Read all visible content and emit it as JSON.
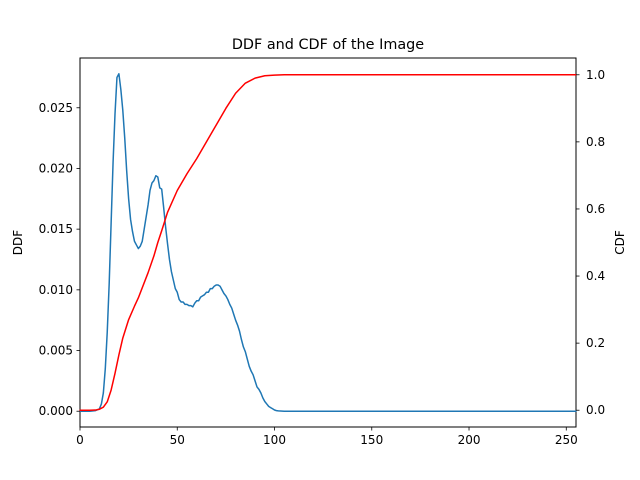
{
  "chart_data": {
    "type": "line",
    "title": "DDF and CDF of the Image",
    "xlabel": "",
    "ylabel": "DDF",
    "ylabel_right": "CDF",
    "xlim": [
      0,
      255
    ],
    "ylim": [
      -0.0013,
      0.0291
    ],
    "ylim_right": [
      -0.05,
      1.05
    ],
    "xticks": [
      0,
      50,
      100,
      150,
      200,
      250
    ],
    "yticks": [
      0.0,
      0.005,
      0.01,
      0.015,
      0.02,
      0.025
    ],
    "yticks_right": [
      0.0,
      0.2,
      0.4,
      0.6,
      0.8,
      1.0
    ],
    "xtick_labels": [
      "0",
      "50",
      "100",
      "150",
      "200",
      "250"
    ],
    "ytick_labels": [
      "0.000",
      "0.005",
      "0.010",
      "0.015",
      "0.020",
      "0.025"
    ],
    "ytick_labels_right": [
      "0.0",
      "0.2",
      "0.4",
      "0.6",
      "0.8",
      "1.0"
    ],
    "grid": false,
    "legend": "none",
    "series": [
      {
        "axis": "left",
        "color": "#1f77b4",
        "x": [
          0,
          5,
          8,
          10,
          11,
          12,
          13,
          14,
          15,
          16,
          17,
          18,
          19,
          20,
          21,
          22,
          23,
          24,
          25,
          26,
          27,
          28,
          29,
          30,
          31,
          32,
          33,
          34,
          35,
          36,
          37,
          38,
          39,
          40,
          41,
          42,
          43,
          44,
          45,
          46,
          47,
          48,
          49,
          50,
          51,
          52,
          53,
          54,
          55,
          56,
          57,
          58,
          59,
          60,
          61,
          62,
          63,
          64,
          65,
          66,
          67,
          68,
          69,
          70,
          71,
          72,
          73,
          74,
          75,
          76,
          77,
          78,
          79,
          80,
          81,
          82,
          83,
          84,
          85,
          86,
          87,
          88,
          89,
          90,
          91,
          92,
          93,
          94,
          95,
          96,
          97,
          98,
          99,
          100,
          101,
          102,
          103,
          104,
          105,
          107,
          110,
          120,
          150,
          200,
          255
        ],
        "y": [
          0,
          0,
          5e-05,
          0.0002,
          0.0006,
          0.0015,
          0.0035,
          0.0065,
          0.0105,
          0.0155,
          0.0205,
          0.0245,
          0.0275,
          0.0278,
          0.0265,
          0.0248,
          0.0225,
          0.0198,
          0.0175,
          0.0158,
          0.0148,
          0.014,
          0.0137,
          0.0134,
          0.0136,
          0.014,
          0.015,
          0.016,
          0.017,
          0.0182,
          0.0188,
          0.019,
          0.0194,
          0.0193,
          0.0184,
          0.0183,
          0.0168,
          0.0152,
          0.0138,
          0.0125,
          0.0115,
          0.0108,
          0.0101,
          0.0098,
          0.0092,
          0.009,
          0.009,
          0.0088,
          0.0088,
          0.0087,
          0.0087,
          0.0086,
          0.0089,
          0.0091,
          0.0091,
          0.0094,
          0.0095,
          0.0096,
          0.0098,
          0.0098,
          0.0101,
          0.0101,
          0.0103,
          0.0104,
          0.0104,
          0.0103,
          0.01,
          0.0097,
          0.0095,
          0.0092,
          0.0088,
          0.0085,
          0.008,
          0.0075,
          0.0071,
          0.0066,
          0.0059,
          0.0053,
          0.0049,
          0.0043,
          0.0037,
          0.0033,
          0.003,
          0.0025,
          0.002,
          0.0018,
          0.0015,
          0.0011,
          0.0008,
          0.0006,
          0.0004,
          0.0003,
          0.0002,
          0.0001,
          5e-05,
          3e-05,
          2e-05,
          1e-05,
          0,
          0,
          0,
          0,
          0,
          0,
          0
        ]
      },
      {
        "axis": "right",
        "color": "#ff0000",
        "x": [
          0,
          5,
          8,
          10,
          12,
          14,
          16,
          18,
          20,
          22,
          25,
          28,
          30,
          35,
          38,
          40,
          42,
          45,
          50,
          55,
          60,
          65,
          70,
          75,
          80,
          85,
          90,
          95,
          100,
          105,
          110,
          120,
          150,
          200,
          255
        ],
        "y": [
          0,
          0,
          0.0005,
          0.003,
          0.009,
          0.025,
          0.06,
          0.11,
          0.165,
          0.215,
          0.27,
          0.31,
          0.335,
          0.41,
          0.46,
          0.5,
          0.535,
          0.59,
          0.655,
          0.705,
          0.75,
          0.8,
          0.85,
          0.9,
          0.945,
          0.975,
          0.99,
          0.997,
          0.999,
          1.0,
          1.0,
          1.0,
          1.0,
          1.0,
          1.0
        ]
      }
    ]
  }
}
